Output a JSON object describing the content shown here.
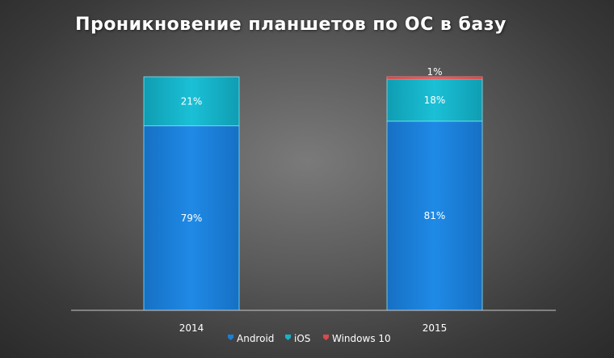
{
  "chart_data": {
    "type": "bar",
    "stacked": true,
    "title": "Проникновение планшетов по ОС в базу",
    "categories": [
      "2014",
      "2015"
    ],
    "series": [
      {
        "name": "Android",
        "values": [
          79,
          81
        ],
        "labels": [
          "79%",
          "81%"
        ],
        "color": "#1a7fd6"
      },
      {
        "name": "iOS",
        "values": [
          21,
          18
        ],
        "labels": [
          "21%",
          "18%"
        ],
        "color": "#15b3c8"
      },
      {
        "name": "Windows 10",
        "values": [
          0,
          1
        ],
        "labels": [
          "",
          "1%"
        ],
        "color": "#d94a4a"
      }
    ],
    "ylim": [
      0,
      100
    ],
    "grid": false,
    "legend": "bottom",
    "colors": {
      "axis": "#d0d0d0",
      "text": "#ffffff"
    }
  }
}
